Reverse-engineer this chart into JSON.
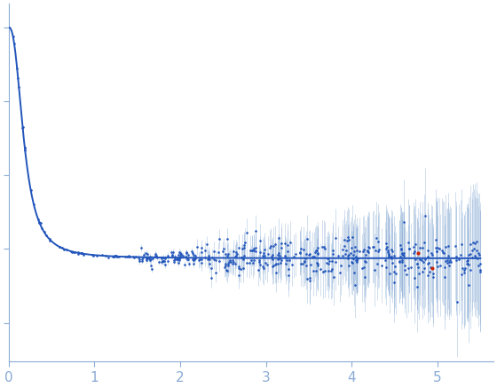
{
  "xlim": [
    0,
    5.65
  ],
  "xticks": [
    0,
    1,
    2,
    3,
    4,
    5
  ],
  "axis_color": "#8aabd4",
  "curve_color": "#2255bb",
  "data_color": "#2255bb",
  "outlier_color": "#cc2200",
  "bg_color": "#ffffff",
  "curve_linewidth": 1.4,
  "marker_size": 3.5,
  "errorbar_alpha": 0.45,
  "figsize": [
    5.6,
    4.37
  ],
  "dpi": 100,
  "I0": 1.0,
  "background": 0.28,
  "decay_rate": 5.5
}
